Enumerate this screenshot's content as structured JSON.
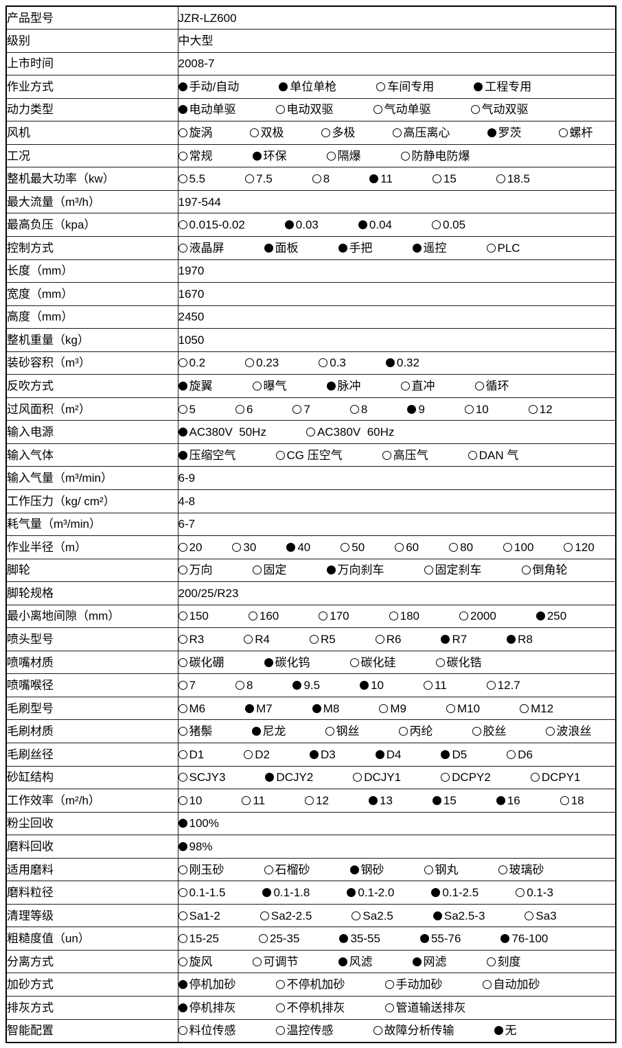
{
  "page": {
    "background_color": "#ffffff",
    "border_color": "#000000",
    "text_color": "#000000",
    "radio_filled_color": "#000000"
  },
  "table": {
    "rows": [
      {
        "label": "产品型号",
        "type": "text",
        "value": "JZR-LZ600"
      },
      {
        "label": "级别",
        "type": "text",
        "value": "中大型"
      },
      {
        "label": "上市时间",
        "type": "text",
        "value": "2008-7"
      },
      {
        "label": "作业方式",
        "type": "options",
        "options": [
          {
            "text": "手动/自动",
            "selected": true
          },
          {
            "text": "单位单枪",
            "selected": true
          },
          {
            "text": "车间专用",
            "selected": false
          },
          {
            "text": "工程专用",
            "selected": true
          }
        ]
      },
      {
        "label": "动力类型",
        "type": "options",
        "options": [
          {
            "text": "电动单驱",
            "selected": true
          },
          {
            "text": "电动双驱",
            "selected": false
          },
          {
            "text": "气动单驱",
            "selected": false
          },
          {
            "text": "气动双驱",
            "selected": false
          }
        ]
      },
      {
        "label": "风机",
        "type": "options",
        "options": [
          {
            "text": "旋涡",
            "selected": false
          },
          {
            "text": "双极",
            "selected": false
          },
          {
            "text": "多极",
            "selected": false
          },
          {
            "text": "高压离心",
            "selected": false
          },
          {
            "text": "罗茨",
            "selected": true
          },
          {
            "text": "螺杆",
            "selected": false
          }
        ]
      },
      {
        "label": "工况",
        "type": "options",
        "options": [
          {
            "text": "常规",
            "selected": false
          },
          {
            "text": "环保",
            "selected": true
          },
          {
            "text": "隔爆",
            "selected": false
          },
          {
            "text": "防静电防爆",
            "selected": false
          }
        ]
      },
      {
        "label": "整机最大功率（kw）",
        "type": "options",
        "options": [
          {
            "text": "5.5",
            "selected": false
          },
          {
            "text": "7.5",
            "selected": false
          },
          {
            "text": "8",
            "selected": false
          },
          {
            "text": "11",
            "selected": true
          },
          {
            "text": "15",
            "selected": false
          },
          {
            "text": "18.5",
            "selected": false
          }
        ]
      },
      {
        "label": "最大流量（m³/h）",
        "type": "text",
        "value": "197-544"
      },
      {
        "label": "最高负压（kpa）",
        "type": "options",
        "options": [
          {
            "text": "0.015-0.02",
            "selected": false
          },
          {
            "text": "0.03",
            "selected": true
          },
          {
            "text": "0.04",
            "selected": true
          },
          {
            "text": "0.05",
            "selected": false
          }
        ]
      },
      {
        "label": "控制方式",
        "type": "options",
        "options": [
          {
            "text": "液晶屏",
            "selected": false
          },
          {
            "text": "面板",
            "selected": true
          },
          {
            "text": "手把",
            "selected": true
          },
          {
            "text": "遥控",
            "selected": true
          },
          {
            "text": "PLC",
            "selected": false
          }
        ]
      },
      {
        "label": "长度（mm）",
        "type": "text",
        "value": "1970"
      },
      {
        "label": "宽度（mm）",
        "type": "text",
        "value": "1670"
      },
      {
        "label": "高度（mm）",
        "type": "text",
        "value": "2450"
      },
      {
        "label": "整机重量（kg）",
        "type": "text",
        "value": "1050"
      },
      {
        "label": "装砂容积（m³）",
        "type": "options",
        "options": [
          {
            "text": "0.2",
            "selected": false
          },
          {
            "text": "0.23",
            "selected": false
          },
          {
            "text": "0.3",
            "selected": false
          },
          {
            "text": "0.32",
            "selected": true
          }
        ]
      },
      {
        "label": "反吹方式",
        "type": "options",
        "options": [
          {
            "text": "旋翼",
            "selected": true
          },
          {
            "text": "曝气",
            "selected": false
          },
          {
            "text": "脉冲",
            "selected": true
          },
          {
            "text": "直冲",
            "selected": false
          },
          {
            "text": "循环",
            "selected": false
          }
        ]
      },
      {
        "label": "过风面积（m²）",
        "type": "options",
        "options": [
          {
            "text": "5",
            "selected": false
          },
          {
            "text": "6",
            "selected": false
          },
          {
            "text": "7",
            "selected": false
          },
          {
            "text": "8",
            "selected": false
          },
          {
            "text": "9",
            "selected": true
          },
          {
            "text": "10",
            "selected": false
          },
          {
            "text": "12",
            "selected": false
          }
        ]
      },
      {
        "label": "输入电源",
        "type": "options",
        "options": [
          {
            "text": "AC380V  50Hz",
            "selected": true
          },
          {
            "text": "AC380V  60Hz",
            "selected": false
          }
        ]
      },
      {
        "label": "输入气体",
        "type": "options",
        "options": [
          {
            "text": "压缩空气",
            "selected": true
          },
          {
            "text": "CG 压空气",
            "selected": false
          },
          {
            "text": "高压气",
            "selected": false
          },
          {
            "text": "DAN 气",
            "selected": false
          }
        ]
      },
      {
        "label": "输入气量（m³/min）",
        "type": "text",
        "value": "6-9"
      },
      {
        "label": "工作压力（kg/ cm²）",
        "type": "text",
        "value": "4-8"
      },
      {
        "label": "耗气量（m³/min）",
        "type": "text",
        "value": "6-7"
      },
      {
        "label": "作业半径（m）",
        "type": "options",
        "options": [
          {
            "text": "20",
            "selected": false
          },
          {
            "text": "30",
            "selected": false
          },
          {
            "text": "40",
            "selected": true
          },
          {
            "text": "50",
            "selected": false
          },
          {
            "text": "60",
            "selected": false
          },
          {
            "text": "80",
            "selected": false
          },
          {
            "text": "100",
            "selected": false
          },
          {
            "text": "120",
            "selected": false
          }
        ]
      },
      {
        "label": "脚轮",
        "type": "options",
        "options": [
          {
            "text": "万向",
            "selected": false
          },
          {
            "text": "固定",
            "selected": false
          },
          {
            "text": "万向刹车",
            "selected": true
          },
          {
            "text": "固定刹车",
            "selected": false
          },
          {
            "text": "倒角轮",
            "selected": false
          }
        ]
      },
      {
        "label": "脚轮规格",
        "type": "text",
        "value": "200/25/R23"
      },
      {
        "label": "最小离地间隙（mm）",
        "type": "options",
        "options": [
          {
            "text": "150",
            "selected": false
          },
          {
            "text": "160",
            "selected": false
          },
          {
            "text": "170",
            "selected": false
          },
          {
            "text": "180",
            "selected": false
          },
          {
            "text": "2000",
            "selected": false
          },
          {
            "text": "250",
            "selected": true
          }
        ]
      },
      {
        "label": "喷头型号",
        "type": "options",
        "options": [
          {
            "text": "R3",
            "selected": false
          },
          {
            "text": "R4",
            "selected": false
          },
          {
            "text": "R5",
            "selected": false
          },
          {
            "text": "R6",
            "selected": false
          },
          {
            "text": "R7",
            "selected": true
          },
          {
            "text": "R8",
            "selected": true
          }
        ]
      },
      {
        "label": "喷嘴材质",
        "type": "options",
        "options": [
          {
            "text": "碳化硼",
            "selected": false
          },
          {
            "text": "碳化钨",
            "selected": true
          },
          {
            "text": "碳化硅",
            "selected": false
          },
          {
            "text": "碳化锆",
            "selected": false
          }
        ]
      },
      {
        "label": "喷嘴喉径",
        "type": "options",
        "options": [
          {
            "text": "7",
            "selected": false
          },
          {
            "text": "8",
            "selected": false
          },
          {
            "text": "9.5",
            "selected": true
          },
          {
            "text": "10",
            "selected": true
          },
          {
            "text": "11",
            "selected": false
          },
          {
            "text": "12.7",
            "selected": false
          }
        ]
      },
      {
        "label": "毛刷型号",
        "type": "options",
        "options": [
          {
            "text": "M6",
            "selected": false
          },
          {
            "text": "M7",
            "selected": true
          },
          {
            "text": "M8",
            "selected": true
          },
          {
            "text": "M9",
            "selected": false
          },
          {
            "text": "M10",
            "selected": false
          },
          {
            "text": "M12",
            "selected": false
          }
        ]
      },
      {
        "label": "毛刷材质",
        "type": "options",
        "options": [
          {
            "text": "猪鬃",
            "selected": false
          },
          {
            "text": "尼龙",
            "selected": true
          },
          {
            "text": "钢丝",
            "selected": false
          },
          {
            "text": "丙纶",
            "selected": false
          },
          {
            "text": "胶丝",
            "selected": false
          },
          {
            "text": "波浪丝",
            "selected": false
          }
        ]
      },
      {
        "label": "毛刷丝径",
        "type": "options",
        "options": [
          {
            "text": "D1",
            "selected": false
          },
          {
            "text": "D2",
            "selected": false
          },
          {
            "text": "D3",
            "selected": true
          },
          {
            "text": "D4",
            "selected": true
          },
          {
            "text": "D5",
            "selected": true
          },
          {
            "text": "D6",
            "selected": false
          }
        ]
      },
      {
        "label": "砂缸结构",
        "type": "options",
        "options": [
          {
            "text": "SCJY3",
            "selected": false
          },
          {
            "text": "DCJY2",
            "selected": true
          },
          {
            "text": "DCJY1",
            "selected": false
          },
          {
            "text": "DCPY2",
            "selected": false
          },
          {
            "text": "DCPY1",
            "selected": false
          }
        ]
      },
      {
        "label": "工作效率（m²/h）",
        "type": "options",
        "options": [
          {
            "text": "10",
            "selected": false
          },
          {
            "text": "11",
            "selected": false
          },
          {
            "text": "12",
            "selected": false
          },
          {
            "text": "13",
            "selected": true
          },
          {
            "text": "15",
            "selected": true
          },
          {
            "text": "16",
            "selected": true
          },
          {
            "text": "18",
            "selected": false
          }
        ]
      },
      {
        "label": "粉尘回收",
        "type": "options",
        "options": [
          {
            "text": "100%",
            "selected": true
          }
        ]
      },
      {
        "label": "磨料回收",
        "type": "options",
        "options": [
          {
            "text": "98%",
            "selected": true
          }
        ]
      },
      {
        "label": "适用磨料",
        "type": "options",
        "options": [
          {
            "text": "刚玉砂",
            "selected": false
          },
          {
            "text": "石榴砂",
            "selected": false
          },
          {
            "text": "钢砂",
            "selected": true
          },
          {
            "text": "钢丸",
            "selected": false
          },
          {
            "text": "玻璃砂",
            "selected": false
          }
        ]
      },
      {
        "label": "磨料粒径",
        "type": "options",
        "options": [
          {
            "text": "0.1-1.5",
            "selected": false
          },
          {
            "text": "0.1-1.8",
            "selected": true
          },
          {
            "text": "0.1-2.0",
            "selected": true
          },
          {
            "text": "0.1-2.5",
            "selected": true
          },
          {
            "text": "0.1-3",
            "selected": false
          }
        ]
      },
      {
        "label": "清理等级",
        "type": "options",
        "options": [
          {
            "text": "Sa1-2",
            "selected": false
          },
          {
            "text": "Sa2-2.5",
            "selected": false
          },
          {
            "text": "Sa2.5",
            "selected": false
          },
          {
            "text": "Sa2.5-3",
            "selected": true
          },
          {
            "text": "Sa3",
            "selected": false
          }
        ]
      },
      {
        "label": "粗糙度值（un）",
        "type": "options",
        "options": [
          {
            "text": "15-25",
            "selected": false
          },
          {
            "text": "25-35",
            "selected": false
          },
          {
            "text": "35-55",
            "selected": true
          },
          {
            "text": "55-76",
            "selected": true
          },
          {
            "text": "76-100",
            "selected": true
          }
        ]
      },
      {
        "label": "分离方式",
        "type": "options",
        "options": [
          {
            "text": "旋风",
            "selected": false
          },
          {
            "text": "可调节",
            "selected": false
          },
          {
            "text": "风滤",
            "selected": true
          },
          {
            "text": "网滤",
            "selected": true
          },
          {
            "text": "刻度",
            "selected": false
          }
        ]
      },
      {
        "label": "加砂方式",
        "type": "options",
        "options": [
          {
            "text": "停机加砂",
            "selected": true
          },
          {
            "text": "不停机加砂",
            "selected": false
          },
          {
            "text": "手动加砂",
            "selected": false
          },
          {
            "text": "自动加砂",
            "selected": false
          }
        ]
      },
      {
        "label": "排灰方式",
        "type": "options",
        "options": [
          {
            "text": "停机排灰",
            "selected": true
          },
          {
            "text": "不停机排灰",
            "selected": false
          },
          {
            "text": "管道输送排灰",
            "selected": false
          }
        ]
      },
      {
        "label": "智能配置",
        "type": "options",
        "options": [
          {
            "text": "料位传感",
            "selected": false
          },
          {
            "text": "温控传感",
            "selected": false
          },
          {
            "text": "故障分析传输",
            "selected": false
          },
          {
            "text": "无",
            "selected": true
          }
        ]
      }
    ]
  }
}
